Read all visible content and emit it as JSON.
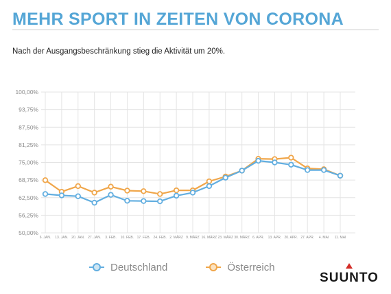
{
  "page": {
    "title": "MEHR SPORT IN ZEITEN VON CORONA",
    "subtitle": "Nach der Ausgangsbeschränkung stieg die Aktivität um 20%.",
    "logo_text": "SUUNTO"
  },
  "colors": {
    "title": "#55a6d6",
    "deutschland": "#62aee0",
    "oesterreich": "#f0a64a",
    "grid": "#e4e4e4",
    "logo_accent": "#d32d27"
  },
  "chart_data": {
    "type": "line",
    "x": [
      "6. JAN.",
      "13. JAN.",
      "20. JAN.",
      "27. JAN.",
      "3. FEB.",
      "10. FEB.",
      "17. FEB.",
      "24. FEB.",
      "2. MÄRZ",
      "9. MÄRZ",
      "16. MÄRZ",
      "23. MÄRZ",
      "30. MÄRZ",
      "6. APR.",
      "13. APR.",
      "20. APR.",
      "27. APR.",
      "4. MAI",
      "11. MAI"
    ],
    "y_ticks": [
      "50,00%",
      "56,25%",
      "62,50%",
      "68,75%",
      "75,00%",
      "81,25%",
      "87,50%",
      "93,75%",
      "100,00%"
    ],
    "ylim": [
      50,
      100
    ],
    "series": [
      {
        "name": "Deutschland",
        "color": "#62aee0",
        "values": [
          63.8,
          63.3,
          63.0,
          60.7,
          63.5,
          61.4,
          61.3,
          61.2,
          63.2,
          64.3,
          66.6,
          69.6,
          72.1,
          75.6,
          75.0,
          74.2,
          72.3,
          72.3,
          70.3
        ]
      },
      {
        "name": "Österreich",
        "color": "#f0a64a",
        "values": [
          68.7,
          64.6,
          66.6,
          64.3,
          66.4,
          65.0,
          64.8,
          63.8,
          65.1,
          65.1,
          68.3,
          70.0,
          72.1,
          76.3,
          76.2,
          76.7,
          72.9,
          72.6,
          70.3
        ]
      }
    ],
    "grid": true,
    "legend_position": "bottom"
  }
}
